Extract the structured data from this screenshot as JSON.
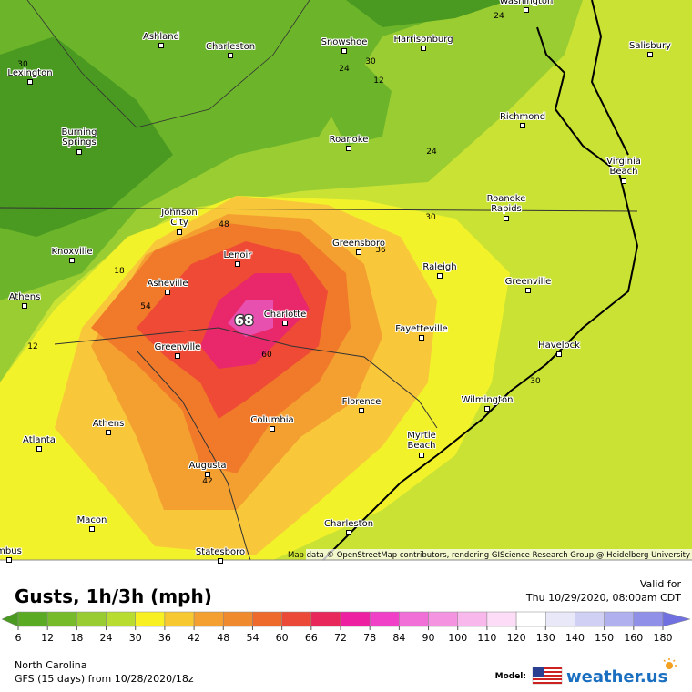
{
  "map": {
    "cities": [
      "Ashland",
      "Charleston",
      "Snowshoe",
      "Harrisonburg",
      "Washington",
      "Salisbury",
      "Lexington",
      "Burning Springs",
      "Richmond",
      "Roanoke",
      "Virginia Beach",
      "Johnson City",
      "Roanoke Rapids",
      "Knoxville",
      "Lenoir",
      "Greensboro",
      "Raleigh",
      "Asheville",
      "Greenville",
      "Athens",
      "Charlotte",
      "Fayetteville",
      "Havelock",
      "Greenville",
      "Florence",
      "Wilmington",
      "Columbia",
      "Athens",
      "Atlanta",
      "Myrtle Beach",
      "Augusta",
      "Macon",
      "Charleston",
      "Statesboro",
      "mbus"
    ],
    "contour_labels": [
      30,
      24,
      24,
      30,
      12,
      24,
      30,
      18,
      48,
      54,
      12,
      68,
      60,
      36,
      30,
      42
    ],
    "attribution": "Map data © OpenStreetMap contributors, rendering GIScience Research Group @ Heidelberg University"
  },
  "legend": {
    "title": "Gusts, 1h/3h (mph)",
    "valid_label": "Valid for",
    "valid_time": "Thu 10/29/2020, 08:00am CDT",
    "colorbar": {
      "ticks": [
        6,
        12,
        18,
        24,
        30,
        36,
        42,
        48,
        54,
        60,
        66,
        72,
        78,
        84,
        90,
        100,
        110,
        120,
        130,
        140,
        150,
        160,
        180
      ],
      "colors": [
        "#4a9a22",
        "#5aaa24",
        "#78bb2a",
        "#98cc30",
        "#b8dc30",
        "#f8f020",
        "#f8c830",
        "#f4a030",
        "#f08a2e",
        "#ee6a2c",
        "#ec4a38",
        "#e8285a",
        "#ec20a0",
        "#f040c8",
        "#f070d8",
        "#f494e0",
        "#f8b8ec",
        "#fcdcf6",
        "#ffffff",
        "#e8e8f8",
        "#d0d0f4",
        "#b0b0ee",
        "#9090e8",
        "#7070e0"
      ]
    }
  },
  "footer": {
    "region": "North Carolina",
    "run": "GFS (15 days) from 10/28/2020/18z",
    "model_label": "Model:",
    "logo": "weather.us"
  }
}
